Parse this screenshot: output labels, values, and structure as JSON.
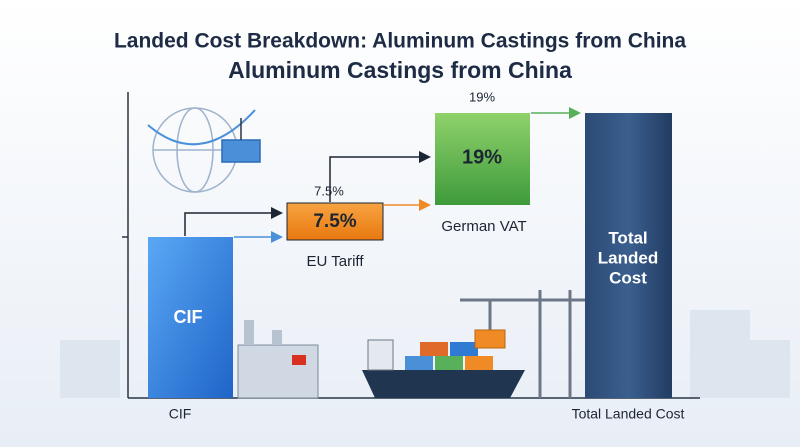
{
  "header": {
    "title": "Landed Cost Breakdown: Aluminum Castings from China",
    "subtitle": "Aluminum Castings from China"
  },
  "nodes": [
    {
      "label": "CIF",
      "caption": "CIF"
    },
    {
      "label": "7.5%",
      "note": "7.5%",
      "caption": "EU Tariff"
    },
    {
      "label": "19%",
      "note": "19%",
      "caption": "German VAT"
    },
    {
      "label_lines": [
        "Total",
        "Landed",
        "Cost"
      ],
      "caption": "Total Landed Cost"
    }
  ]
}
